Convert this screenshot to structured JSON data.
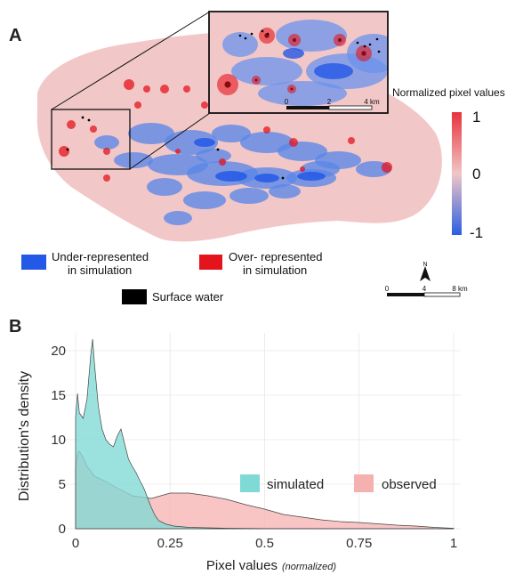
{
  "panel_a": {
    "label": "A",
    "colorbar": {
      "title": "Normalized pixel values",
      "ticks": [
        "1",
        "0",
        "-1"
      ],
      "colors": {
        "high": "#e8323c",
        "mid": "#f1c6c6",
        "low": "#2a5fe0"
      }
    },
    "inset_scale": {
      "labels": [
        "0",
        "2",
        "4 km"
      ]
    },
    "map_scale": {
      "labels": [
        "0",
        "4",
        "8 km"
      ]
    },
    "north_label": "N",
    "legend": {
      "under": "Under-represented\nin simulation",
      "over": "Over- represented\nin simulation",
      "water": "Surface water"
    },
    "colors": {
      "background": "#f2c7c7",
      "under": "#2458e6",
      "over": "#e4141c",
      "water": "#000000"
    }
  },
  "panel_b": {
    "label": "B"
  },
  "chart_data": {
    "type": "area",
    "xlabel": "Pixel values",
    "xlabel_note": "(normalized)",
    "ylabel": "Distribution's density",
    "xlim": [
      0,
      1
    ],
    "ylim": [
      0,
      22
    ],
    "x_ticks": [
      0,
      0.25,
      0.5,
      0.75,
      1
    ],
    "x_tick_labels": [
      "0",
      "0.25",
      "0.5",
      "0.75",
      "1"
    ],
    "y_ticks": [
      0,
      5,
      10,
      15,
      20
    ],
    "y_tick_labels": [
      "0",
      "5",
      "10",
      "15",
      "20"
    ],
    "legend_position": "center-right",
    "series": [
      {
        "name": "simulated",
        "color": "#7fdad6",
        "x": [
          0,
          0.005,
          0.01,
          0.02,
          0.03,
          0.04,
          0.045,
          0.05,
          0.06,
          0.07,
          0.08,
          0.09,
          0.1,
          0.11,
          0.12,
          0.13,
          0.14,
          0.15,
          0.16,
          0.17,
          0.18,
          0.19,
          0.2,
          0.21,
          0.22,
          0.24,
          0.26,
          0.3,
          0.4,
          0.5,
          0.6,
          0.8,
          1.0
        ],
        "values": [
          12.5,
          15.2,
          13.0,
          12.4,
          14.5,
          19.5,
          21.3,
          18.5,
          13.8,
          11.2,
          10.0,
          9.5,
          9.2,
          10.4,
          11.2,
          9.5,
          7.8,
          7.0,
          6.3,
          5.4,
          4.6,
          3.5,
          2.4,
          1.5,
          0.9,
          0.5,
          0.3,
          0.15,
          0.05,
          0.02,
          0.01,
          0.0,
          0.0
        ]
      },
      {
        "name": "observed",
        "color": "#f5b0b0",
        "x": [
          0,
          0.005,
          0.01,
          0.02,
          0.03,
          0.05,
          0.08,
          0.1,
          0.15,
          0.2,
          0.25,
          0.3,
          0.35,
          0.4,
          0.45,
          0.5,
          0.55,
          0.6,
          0.65,
          0.7,
          0.75,
          0.8,
          0.85,
          0.9,
          0.95,
          1.0
        ],
        "values": [
          6.8,
          8.4,
          8.7,
          8.0,
          7.0,
          5.9,
          5.3,
          4.8,
          3.7,
          3.4,
          4.0,
          4.0,
          3.7,
          3.3,
          2.7,
          2.2,
          1.6,
          1.3,
          1.0,
          0.8,
          0.7,
          0.55,
          0.4,
          0.3,
          0.15,
          0.05
        ]
      }
    ]
  }
}
